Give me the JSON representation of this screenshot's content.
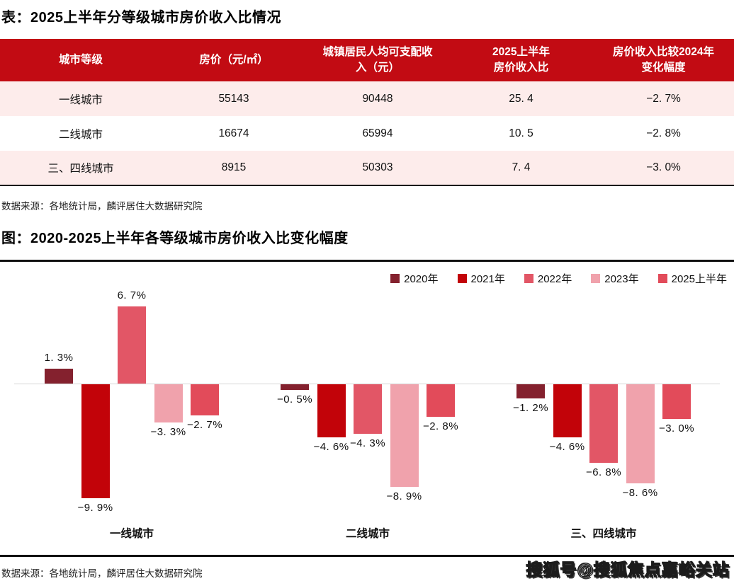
{
  "page": {
    "table_title": "表：2025上半年分等级城市房价收入比情况",
    "chart_title": "图：2020-2025上半年各等级城市房价收入比变化幅度",
    "table_source": "数据来源：各地统计局，麟评居住大数据研究院",
    "chart_source": "数据来源：各地统计局，麟评居住大数据研究院",
    "watermark": "搜狐号@搜狐焦点嘉峪关站"
  },
  "table": {
    "headers": [
      "城市等级",
      "房价（元/㎡）",
      "城镇居民人均可支配收\n入（元）",
      "2025上半年\n房价收入比",
      "房价收入比较2024年\n变化幅度"
    ],
    "rows": [
      [
        "一线城市",
        "55143",
        "90448",
        "25. 4",
        "−2. 7%"
      ],
      [
        "二线城市",
        "16674",
        "65994",
        "10. 5",
        "−2. 8%"
      ],
      [
        "三、四线城市",
        "8915",
        "50303",
        "7. 4",
        "−3. 0%"
      ]
    ]
  },
  "chart_data": {
    "type": "bar",
    "title": "图：2020-2025上半年各等级城市房价收入比变化幅度",
    "unit": "%",
    "categories": [
      "一线城市",
      "二线城市",
      "三、四线城市"
    ],
    "series": [
      {
        "name": "2020年",
        "color": "#84212e",
        "values": [
          1.3,
          -0.5,
          -1.2
        ]
      },
      {
        "name": "2021年",
        "color": "#c20309",
        "values": [
          -9.9,
          -4.6,
          -4.6
        ]
      },
      {
        "name": "2022年",
        "color": "#e25666",
        "values": [
          6.7,
          -4.3,
          -6.8
        ]
      },
      {
        "name": "2023年",
        "color": "#f0a2ac",
        "values": [
          -3.3,
          -8.9,
          -8.6
        ]
      },
      {
        "name": "2025上半年",
        "color": "#e24b5a",
        "values": [
          -2.7,
          -2.8,
          -3.0
        ]
      }
    ],
    "labels": [
      [
        "1. 3%",
        "−9. 9%",
        "6. 7%",
        "−3. 3%",
        "−2. 7%"
      ],
      [
        "−0. 5%",
        "−4. 6%",
        "−4. 3%",
        "−8. 9%",
        "−2. 8%"
      ],
      [
        "−1. 2%",
        "−4. 6%",
        "−6. 8%",
        "−8. 6%",
        "−3. 0%"
      ]
    ],
    "ylim": [
      -10.5,
      8
    ],
    "grid": false,
    "legend_position": "top-right",
    "colors": {
      "table_header_bg": "#c20b13",
      "row_alt_bg": "#fdeceb",
      "axis_line": "#d6d6d6",
      "frame_line": "#111111"
    }
  }
}
